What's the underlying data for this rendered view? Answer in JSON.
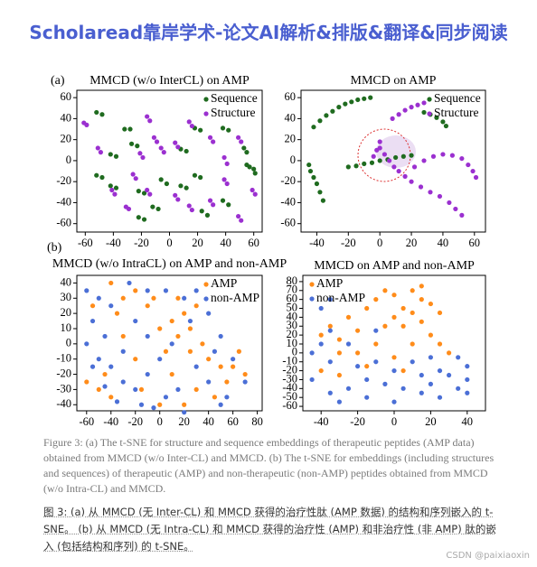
{
  "header": {
    "title": "Scholaread靠岸学术-论文AI解析&排版&翻译&同步阅读"
  },
  "panels": [
    "(a)",
    "(b)"
  ],
  "chart_data": [
    {
      "type": "scatter",
      "title": "MMCD (w/o InterCL) on AMP",
      "legend": "upper right",
      "xlim": [
        -66,
        66
      ],
      "ylim": [
        -68,
        67
      ],
      "xticks": [
        -60,
        -40,
        -20,
        0,
        20,
        40,
        60
      ],
      "yticks": [
        -60,
        -40,
        -20,
        0,
        20,
        40,
        60
      ],
      "series": [
        {
          "name": "Sequence",
          "color": "#1f6b1f",
          "x": [
            -32,
            -28,
            -42,
            -38,
            -52,
            -48,
            -42,
            -38,
            -22,
            -18,
            -22,
            -18,
            -12,
            -8,
            -6,
            -2,
            8,
            12,
            18,
            22,
            8,
            12,
            18,
            22,
            38,
            42,
            53,
            55,
            55,
            57,
            38,
            42,
            23,
            27,
            -27,
            -23,
            -52,
            -48,
            60,
            61
          ],
          "values": [
            30,
            30,
            6,
            4,
            -14,
            -16,
            -24,
            -26,
            -54,
            -56,
            -29,
            -31,
            -44,
            -46,
            -18,
            -22,
            -24,
            -26,
            -14,
            -16,
            11,
            9,
            31,
            29,
            31,
            29,
            12,
            8,
            -4,
            -6,
            -38,
            -42,
            -48,
            -52,
            16,
            14,
            46,
            44,
            -8,
            -12
          ]
        },
        {
          "name": "Structure",
          "color": "#9b30d0",
          "x": [
            -61,
            -59,
            -51,
            -49,
            -41,
            -39,
            -31,
            -29,
            -16,
            -14,
            -21,
            -19,
            -11,
            -9,
            -6,
            -4,
            -26,
            -24,
            4,
            6,
            29,
            31,
            39,
            41,
            39,
            41,
            49,
            51,
            59,
            61,
            14,
            16,
            14,
            16,
            -16,
            -14,
            29,
            31,
            49,
            51,
            4,
            6
          ],
          "values": [
            36,
            34,
            12,
            8,
            -28,
            -32,
            -44,
            -46,
            -28,
            -32,
            7,
            3,
            22,
            18,
            12,
            8,
            -13,
            -17,
            -33,
            -37,
            22,
            18,
            3,
            -3,
            -18,
            -22,
            22,
            18,
            -28,
            -32,
            37,
            33,
            -43,
            -47,
            42,
            38,
            -38,
            -42,
            -53,
            -57,
            17,
            13
          ]
        }
      ]
    },
    {
      "type": "scatter",
      "title": "MMCD on AMP",
      "legend": "upper right",
      "xlim": [
        -50,
        67
      ],
      "ylim": [
        -68,
        67
      ],
      "xticks": [
        -40,
        -20,
        0,
        20,
        40,
        60
      ],
      "yticks": [
        -60,
        -40,
        -20,
        0,
        20,
        40,
        60
      ],
      "series": [
        {
          "name": "Sequence",
          "color": "#1f6b1f",
          "x": [
            -42,
            -38,
            -34,
            -30,
            -26,
            -22,
            -18,
            -14,
            -10,
            -6,
            -45,
            -44,
            -42,
            -40,
            -38,
            -36,
            28,
            32,
            36,
            40,
            42,
            -20,
            -15,
            -10,
            -5,
            0,
            5,
            10,
            15,
            20
          ],
          "values": [
            32,
            38,
            43,
            47,
            51,
            54,
            56,
            58,
            59,
            60,
            -4,
            -10,
            -16,
            -22,
            -30,
            -38,
            46,
            44,
            41,
            37,
            33,
            -6,
            -5,
            -3,
            -2,
            0,
            1,
            3,
            4,
            5
          ],
          "annotation": "circle"
        },
        {
          "name": "Structure",
          "color": "#9b30d0",
          "x": [
            8,
            12,
            16,
            20,
            24,
            28,
            0,
            3,
            6,
            9,
            12,
            16,
            20,
            26,
            32,
            38,
            44,
            48,
            52,
            22,
            28,
            34,
            40,
            46,
            52,
            56,
            59,
            61,
            -2,
            -4,
            0
          ],
          "values": [
            40,
            44,
            48,
            51,
            53,
            55,
            12,
            6,
            0,
            -6,
            -10,
            -15,
            -20,
            -25,
            -30,
            -34,
            -40,
            -46,
            -52,
            -6,
            0,
            4,
            6,
            5,
            2,
            -4,
            -10,
            -16,
            10,
            4,
            18
          ]
        }
      ]
    },
    {
      "type": "scatter",
      "title": "MMCD (w/o IntraCL) on AMP and non-AMP",
      "legend": "upper right",
      "xlim": [
        -68,
        84
      ],
      "ylim": [
        -44,
        45
      ],
      "xticks": [
        -60,
        -40,
        -20,
        0,
        20,
        40,
        60,
        80
      ],
      "yticks": [
        -40,
        -30,
        -20,
        -10,
        0,
        10,
        20,
        30,
        40
      ],
      "series": [
        {
          "name": "AMP",
          "color": "#ff8c1a",
          "x": [
            0,
            10,
            20,
            30,
            15,
            25,
            5,
            -10,
            -20,
            -30,
            40,
            50,
            60,
            70,
            55,
            45,
            30,
            -40,
            -50,
            -60,
            -45,
            -20,
            -30,
            -55,
            -40,
            10,
            20,
            35,
            -5,
            15,
            65,
            -15,
            0,
            25,
            -35
          ],
          "values": [
            10,
            15,
            20,
            25,
            5,
            10,
            -5,
            25,
            35,
            30,
            -10,
            -15,
            -15,
            -20,
            -25,
            -35,
            -30,
            -35,
            -30,
            -25,
            -20,
            -10,
            5,
            25,
            40,
            -20,
            -40,
            0,
            30,
            30,
            -5,
            -30,
            -40,
            -5,
            20
          ]
        },
        {
          "name": "non-AMP",
          "color": "#4b6fd6",
          "x": [
            -60,
            -50,
            -55,
            -45,
            -60,
            -50,
            -40,
            -30,
            -20,
            -10,
            0,
            -20,
            -10,
            -30,
            -40,
            -25,
            -10,
            5,
            20,
            30,
            40,
            50,
            45,
            60,
            70,
            55,
            40,
            30,
            15,
            5,
            -5,
            20,
            50,
            -15,
            -35,
            -55,
            25,
            10,
            -45
          ],
          "values": [
            35,
            30,
            15,
            5,
            0,
            -10,
            -15,
            -25,
            -30,
            -20,
            -10,
            15,
            5,
            -5,
            25,
            40,
            35,
            35,
            30,
            35,
            20,
            5,
            -5,
            -10,
            -25,
            -35,
            -25,
            -15,
            -30,
            -35,
            -42,
            -45,
            -40,
            -40,
            -38,
            -15,
            15,
            0,
            -28
          ]
        }
      ]
    },
    {
      "type": "scatter",
      "title": "MMCD on AMP and non-AMP",
      "legend": "upper left",
      "xlim": [
        -50,
        50
      ],
      "ylim": [
        -65,
        87
      ],
      "xticks": [
        -40,
        -20,
        0,
        20,
        40
      ],
      "yticks": [
        -60,
        -50,
        -40,
        -30,
        -20,
        -10,
        0,
        10,
        20,
        30,
        40,
        50,
        60,
        70,
        80
      ],
      "series": [
        {
          "name": "AMP",
          "color": "#ff8c1a",
          "x": [
            -40,
            -35,
            -30,
            -20,
            -25,
            -15,
            -10,
            0,
            10,
            15,
            20,
            10,
            0,
            -5,
            5,
            15,
            20,
            25,
            -10,
            -20,
            -30,
            10,
            5,
            -5,
            15,
            25,
            -40,
            -30,
            -15,
            0,
            30,
            5
          ],
          "values": [
            20,
            30,
            15,
            25,
            40,
            50,
            60,
            65,
            70,
            75,
            55,
            45,
            40,
            30,
            30,
            35,
            20,
            10,
            10,
            0,
            0,
            10,
            50,
            70,
            60,
            45,
            -20,
            -25,
            -15,
            -5,
            0,
            -20
          ]
        },
        {
          "name": "non-AMP",
          "color": "#4b6fd6",
          "x": [
            -40,
            -45,
            -35,
            -45,
            -35,
            -25,
            -15,
            -5,
            5,
            15,
            25,
            35,
            40,
            30,
            40,
            35,
            25,
            15,
            10,
            20,
            0,
            -10,
            -20,
            -30,
            0,
            20,
            -35,
            -10,
            -40,
            -35,
            -25,
            40,
            -15
          ],
          "values": [
            10,
            0,
            -10,
            -30,
            -45,
            -40,
            -30,
            -35,
            -40,
            -45,
            -50,
            -40,
            -30,
            -25,
            -15,
            -5,
            -20,
            -25,
            -10,
            -5,
            -20,
            -10,
            -15,
            -55,
            -55,
            -35,
            25,
            25,
            50,
            60,
            10,
            -45,
            -50
          ]
        }
      ]
    }
  ],
  "caption": "Figure 3: (a) The t-SNE for structure and sequence embeddings of therapeutic peptides (AMP data) obtained from MMCD (w/o Inter-CL) and MMCD. (b) The t-SNE for embeddings (including structures and sequences) of therapeutic (AMP) and non-therapeutic (non-AMP) peptides obtained from MMCD (w/o Intra-CL) and MMCD.",
  "caption_zh": "图 3: (a) 从 MMCD (无 Inter-CL) 和 MMCD 获得的治疗性肽 (AMP 数据) 的结构和序列嵌入的 t-SNE。 (b) 从 MMCD (无 Intra-CL) 和 MMCD 获得的治疗性 (AMP) 和非治疗性 (非 AMP) 肽的嵌入 (包括结构和序列) 的 t-SNE。",
  "watermark": "CSDN @paixiaoxin"
}
